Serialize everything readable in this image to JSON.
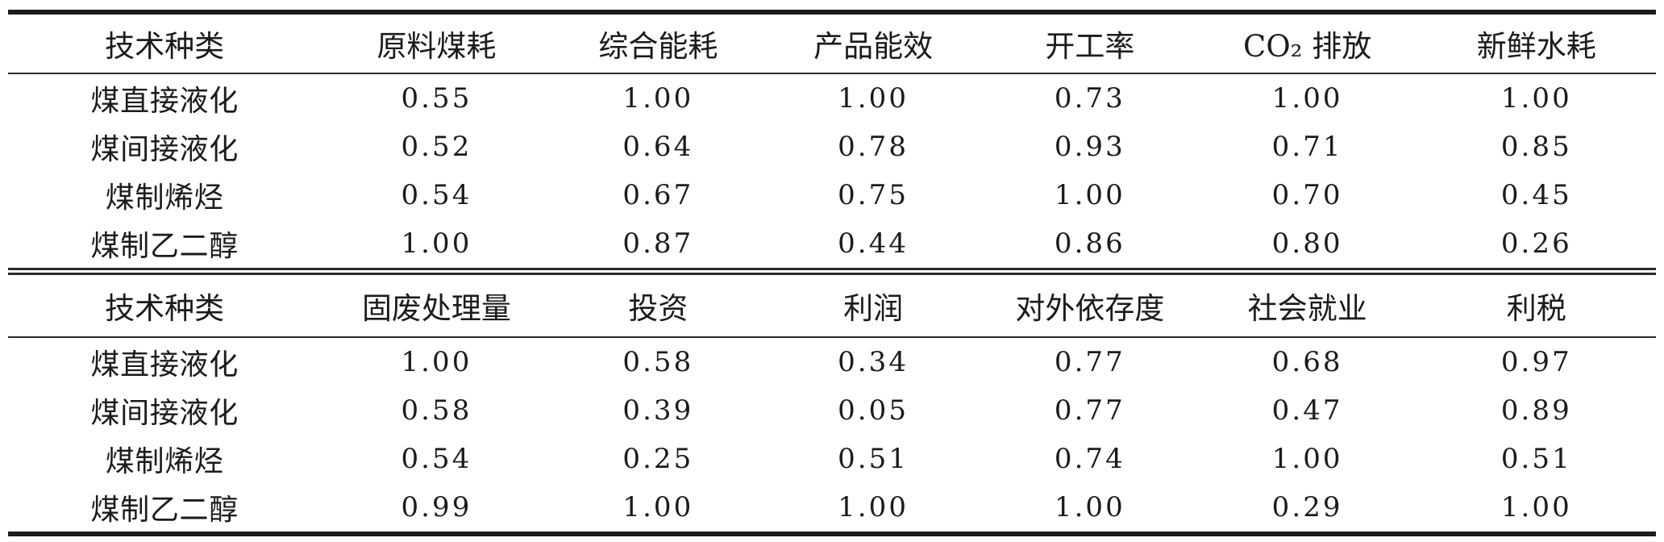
{
  "document": {
    "kind": "normalized-indicator-table",
    "row_label_header": "技术种类"
  },
  "colors": {
    "rule": "#1b1b1b",
    "text": "#1b1b1b",
    "background": "#ffffff"
  },
  "tables": [
    {
      "name": "section-1-energy-environment-indicators",
      "header": [
        "技术种类",
        "原料煤耗",
        "综合能耗",
        "产品能效",
        "开工率",
        "CO₂ 排放",
        "新鲜水耗"
      ],
      "rows": [
        [
          "煤直接液化",
          "0.55",
          "1.00",
          "1.00",
          "0.73",
          "1.00",
          "1.00"
        ],
        [
          "煤间接液化",
          "0.52",
          "0.64",
          "0.78",
          "0.93",
          "0.71",
          "0.85"
        ],
        [
          "煤制烯烃",
          "0.54",
          "0.67",
          "0.75",
          "1.00",
          "0.70",
          "0.45"
        ],
        [
          "煤制乙二醇",
          "1.00",
          "0.87",
          "0.44",
          "0.86",
          "0.80",
          "0.26"
        ]
      ]
    },
    {
      "name": "section-2-economic-social-indicators",
      "header": [
        "技术种类",
        "固废处理量",
        "投资",
        "利润",
        "对外依存度",
        "社会就业",
        "利税"
      ],
      "rows": [
        [
          "煤直接液化",
          "1.00",
          "0.58",
          "0.34",
          "0.77",
          "0.68",
          "0.97"
        ],
        [
          "煤间接液化",
          "0.58",
          "0.39",
          "0.05",
          "0.77",
          "0.47",
          "0.89"
        ],
        [
          "煤制烯烃",
          "0.54",
          "0.25",
          "0.51",
          "0.74",
          "1.00",
          "0.51"
        ],
        [
          "煤制乙二醇",
          "0.99",
          "1.00",
          "1.00",
          "1.00",
          "0.29",
          "1.00"
        ]
      ]
    }
  ],
  "chart_data": {
    "type": "table",
    "title": "",
    "sections": [
      {
        "columns": [
          "技术种类",
          "原料煤耗",
          "综合能耗",
          "产品能效",
          "开工率",
          "CO₂ 排放",
          "新鲜水耗"
        ],
        "records": [
          {
            "技术种类": "煤直接液化",
            "原料煤耗": 0.55,
            "综合能耗": 1.0,
            "产品能效": 1.0,
            "开工率": 0.73,
            "CO₂ 排放": 1.0,
            "新鲜水耗": 1.0
          },
          {
            "技术种类": "煤间接液化",
            "原料煤耗": 0.52,
            "综合能耗": 0.64,
            "产品能效": 0.78,
            "开工率": 0.93,
            "CO₂ 排放": 0.71,
            "新鲜水耗": 0.85
          },
          {
            "技术种类": "煤制烯烃",
            "原料煤耗": 0.54,
            "综合能耗": 0.67,
            "产品能效": 0.75,
            "开工率": 1.0,
            "CO₂ 排放": 0.7,
            "新鲜水耗": 0.45
          },
          {
            "技术种类": "煤制乙二醇",
            "原料煤耗": 1.0,
            "综合能耗": 0.87,
            "产品能效": 0.44,
            "开工率": 0.86,
            "CO₂ 排放": 0.8,
            "新鲜水耗": 0.26
          }
        ]
      },
      {
        "columns": [
          "技术种类",
          "固废处理量",
          "投资",
          "利润",
          "对外依存度",
          "社会就业",
          "利税"
        ],
        "records": [
          {
            "技术种类": "煤直接液化",
            "固废处理量": 1.0,
            "投资": 0.58,
            "利润": 0.34,
            "对外依存度": 0.77,
            "社会就业": 0.68,
            "利税": 0.97
          },
          {
            "技术种类": "煤间接液化",
            "固废处理量": 0.58,
            "投资": 0.39,
            "利润": 0.05,
            "对外依存度": 0.77,
            "社会就业": 0.47,
            "利税": 0.89
          },
          {
            "技术种类": "煤制烯烃",
            "固废处理量": 0.54,
            "投资": 0.25,
            "利润": 0.51,
            "对外依存度": 0.74,
            "社会就业": 1.0,
            "利税": 0.51
          },
          {
            "技术种类": "煤制乙二醇",
            "固废处理量": 0.99,
            "投资": 1.0,
            "利润": 1.0,
            "对外依存度": 1.0,
            "社会就业": 0.29,
            "利税": 1.0
          }
        ]
      }
    ]
  }
}
